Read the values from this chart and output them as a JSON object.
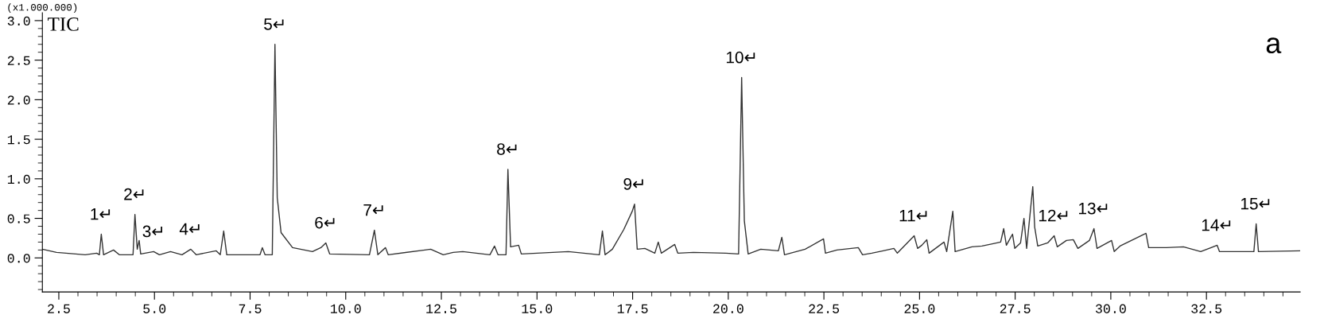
{
  "chart_data": {
    "type": "line",
    "ylabel": "(x1.000.000)",
    "x": [
      2.07,
      2.44,
      3.19,
      3.49,
      3.56,
      3.61,
      3.67,
      3.93,
      4.08,
      4.44,
      4.49,
      4.55,
      4.6,
      4.64,
      4.98,
      5.13,
      5.42,
      5.72,
      5.95,
      6.09,
      6.61,
      6.72,
      6.81,
      6.89,
      7.76,
      7.82,
      7.89,
      8.08,
      8.15,
      8.21,
      8.31,
      8.61,
      9.13,
      9.35,
      9.48,
      9.58,
      10.62,
      10.75,
      10.84,
      11.04,
      11.11,
      12.07,
      12.22,
      12.55,
      12.81,
      13.06,
      13.77,
      13.89,
      13.98,
      14.19,
      14.24,
      14.31,
      14.52,
      14.59,
      15.82,
      16.63,
      16.71,
      16.78,
      16.97,
      17.27,
      17.49,
      17.55,
      17.62,
      17.82,
      18.08,
      18.17,
      18.25,
      18.6,
      18.68,
      19.09,
      19.94,
      20.27,
      20.35,
      20.42,
      20.52,
      20.85,
      21.31,
      21.4,
      21.47,
      22.01,
      22.49,
      22.54,
      22.84,
      23.4,
      23.51,
      23.75,
      24.05,
      24.33,
      24.42,
      24.86,
      24.95,
      25.06,
      25.19,
      25.25,
      25.64,
      25.71,
      25.87,
      25.93,
      26.37,
      26.63,
      26.93,
      27.12,
      27.2,
      27.27,
      27.43,
      27.49,
      27.64,
      27.73,
      27.8,
      27.96,
      28.01,
      28.09,
      28.35,
      28.52,
      28.6,
      28.84,
      29.02,
      29.14,
      29.44,
      29.56,
      29.64,
      30.02,
      30.09,
      30.24,
      30.92,
      30.99,
      31.45,
      31.9,
      32.35,
      32.78,
      32.84,
      33.74,
      33.8,
      33.86,
      34.95
    ],
    "series": [
      {
        "color": "#333333",
        "values": [
          0.11,
          0.07,
          0.04,
          0.06,
          0.04,
          0.3,
          0.04,
          0.1,
          0.04,
          0.04,
          0.55,
          0.11,
          0.22,
          0.05,
          0.08,
          0.04,
          0.08,
          0.04,
          0.11,
          0.04,
          0.09,
          0.04,
          0.34,
          0.04,
          0.04,
          0.13,
          0.04,
          0.04,
          2.7,
          0.76,
          0.32,
          0.13,
          0.08,
          0.13,
          0.19,
          0.05,
          0.04,
          0.35,
          0.04,
          0.13,
          0.04,
          0.1,
          0.11,
          0.04,
          0.07,
          0.08,
          0.04,
          0.15,
          0.04,
          0.04,
          1.12,
          0.14,
          0.16,
          0.05,
          0.08,
          0.04,
          0.34,
          0.04,
          0.11,
          0.36,
          0.59,
          0.68,
          0.11,
          0.12,
          0.06,
          0.2,
          0.06,
          0.17,
          0.06,
          0.07,
          0.06,
          0.05,
          2.28,
          0.47,
          0.05,
          0.11,
          0.09,
          0.26,
          0.04,
          0.11,
          0.24,
          0.06,
          0.1,
          0.13,
          0.04,
          0.06,
          0.09,
          0.12,
          0.06,
          0.28,
          0.12,
          0.16,
          0.23,
          0.06,
          0.2,
          0.08,
          0.59,
          0.08,
          0.14,
          0.15,
          0.18,
          0.2,
          0.37,
          0.16,
          0.3,
          0.12,
          0.19,
          0.5,
          0.12,
          0.9,
          0.39,
          0.15,
          0.19,
          0.28,
          0.14,
          0.22,
          0.23,
          0.12,
          0.22,
          0.37,
          0.12,
          0.22,
          0.08,
          0.15,
          0.31,
          0.13,
          0.13,
          0.14,
          0.08,
          0.16,
          0.08,
          0.08,
          0.43,
          0.08,
          0.09
        ]
      }
    ],
    "xlim": [
      2.07,
      34.95
    ],
    "ylim": [
      -0.43,
      3.1
    ],
    "xticks": [
      {
        "value": 2.5,
        "label": "2.5"
      },
      {
        "value": 3.0,
        "label": null
      },
      {
        "value": 3.5,
        "label": null
      },
      {
        "value": 4.0,
        "label": null
      },
      {
        "value": 4.5,
        "label": null
      },
      {
        "value": 5.0,
        "label": "5.0"
      },
      {
        "value": 5.5,
        "label": null
      },
      {
        "value": 6.0,
        "label": null
      },
      {
        "value": 6.5,
        "label": null
      },
      {
        "value": 7.0,
        "label": null
      },
      {
        "value": 7.5,
        "label": "7.5"
      },
      {
        "value": 8.0,
        "label": null
      },
      {
        "value": 8.5,
        "label": null
      },
      {
        "value": 9.0,
        "label": null
      },
      {
        "value": 9.5,
        "label": null
      },
      {
        "value": 10.0,
        "label": "10.0"
      },
      {
        "value": 10.5,
        "label": null
      },
      {
        "value": 11.0,
        "label": null
      },
      {
        "value": 11.5,
        "label": null
      },
      {
        "value": 12.0,
        "label": null
      },
      {
        "value": 12.5,
        "label": "12.5"
      },
      {
        "value": 13.0,
        "label": null
      },
      {
        "value": 13.5,
        "label": null
      },
      {
        "value": 14.0,
        "label": null
      },
      {
        "value": 14.5,
        "label": null
      },
      {
        "value": 15.0,
        "label": "15.0"
      },
      {
        "value": 15.5,
        "label": null
      },
      {
        "value": 16.0,
        "label": null
      },
      {
        "value": 16.5,
        "label": null
      },
      {
        "value": 17.0,
        "label": null
      },
      {
        "value": 17.5,
        "label": "17.5"
      },
      {
        "value": 18.0,
        "label": null
      },
      {
        "value": 18.5,
        "label": null
      },
      {
        "value": 19.0,
        "label": null
      },
      {
        "value": 19.5,
        "label": null
      },
      {
        "value": 20.0,
        "label": "20.0"
      },
      {
        "value": 20.5,
        "label": null
      },
      {
        "value": 21.0,
        "label": null
      },
      {
        "value": 21.5,
        "label": null
      },
      {
        "value": 22.0,
        "label": null
      },
      {
        "value": 22.5,
        "label": "22.5"
      },
      {
        "value": 23.0,
        "label": null
      },
      {
        "value": 23.5,
        "label": null
      },
      {
        "value": 24.0,
        "label": null
      },
      {
        "value": 24.5,
        "label": null
      },
      {
        "value": 25.0,
        "label": "25.0"
      },
      {
        "value": 25.5,
        "label": null
      },
      {
        "value": 26.0,
        "label": null
      },
      {
        "value": 26.5,
        "label": null
      },
      {
        "value": 27.0,
        "label": null
      },
      {
        "value": 27.5,
        "label": "27.5"
      },
      {
        "value": 28.0,
        "label": null
      },
      {
        "value": 28.5,
        "label": null
      },
      {
        "value": 29.0,
        "label": null
      },
      {
        "value": 29.5,
        "label": null
      },
      {
        "value": 30.0,
        "label": "30.0"
      },
      {
        "value": 30.5,
        "label": null
      },
      {
        "value": 31.0,
        "label": null
      },
      {
        "value": 31.5,
        "label": null
      },
      {
        "value": 32.0,
        "label": null
      },
      {
        "value": 32.5,
        "label": "32.5"
      },
      {
        "value": 33.0,
        "label": null
      },
      {
        "value": 33.5,
        "label": null
      },
      {
        "value": 34.0,
        "label": null
      },
      {
        "value": 34.5,
        "label": null
      }
    ],
    "yticks": [
      {
        "value": -0.4,
        "label": null
      },
      {
        "value": -0.3,
        "label": null
      },
      {
        "value": -0.2,
        "label": null
      },
      {
        "value": -0.1,
        "label": null
      },
      {
        "value": 0.0,
        "label": "0.0"
      },
      {
        "value": 0.1,
        "label": null
      },
      {
        "value": 0.2,
        "label": null
      },
      {
        "value": 0.3,
        "label": null
      },
      {
        "value": 0.4,
        "label": null
      },
      {
        "value": 0.5,
        "label": "0.5"
      },
      {
        "value": 0.6,
        "label": null
      },
      {
        "value": 0.7,
        "label": null
      },
      {
        "value": 0.8,
        "label": null
      },
      {
        "value": 0.9,
        "label": null
      },
      {
        "value": 1.0,
        "label": "1.0"
      },
      {
        "value": 1.1,
        "label": null
      },
      {
        "value": 1.2,
        "label": null
      },
      {
        "value": 1.3,
        "label": null
      },
      {
        "value": 1.4,
        "label": null
      },
      {
        "value": 1.5,
        "label": "1.5"
      },
      {
        "value": 1.6,
        "label": null
      },
      {
        "value": 1.7,
        "label": null
      },
      {
        "value": 1.8,
        "label": null
      },
      {
        "value": 1.9,
        "label": null
      },
      {
        "value": 2.0,
        "label": "2.0"
      },
      {
        "value": 2.1,
        "label": null
      },
      {
        "value": 2.2,
        "label": null
      },
      {
        "value": 2.3,
        "label": null
      },
      {
        "value": 2.4,
        "label": null
      },
      {
        "value": 2.5,
        "label": "2.5"
      },
      {
        "value": 2.6,
        "label": null
      },
      {
        "value": 2.7,
        "label": null
      },
      {
        "value": 2.8,
        "label": null
      },
      {
        "value": 2.9,
        "label": null
      },
      {
        "value": 3.0,
        "label": "3.0"
      }
    ],
    "annotations": [
      "TIC",
      "a",
      {
        "text": "1↵",
        "x": 3.61,
        "y": 0.3
      },
      {
        "text": "2↵",
        "x": 4.49,
        "y": 0.55
      },
      {
        "text": "3↵",
        "x": 4.98,
        "y": 0.08
      },
      {
        "text": "4↵",
        "x": 5.95,
        "y": 0.11
      },
      {
        "text": "5↵",
        "x": 8.15,
        "y": 2.7
      },
      {
        "text": "6↵",
        "x": 9.48,
        "y": 0.19
      },
      {
        "text": "7↵",
        "x": 10.75,
        "y": 0.35
      },
      {
        "text": "8↵",
        "x": 14.24,
        "y": 1.12
      },
      {
        "text": "9↵",
        "x": 17.55,
        "y": 0.68
      },
      {
        "text": "10↵",
        "x": 20.35,
        "y": 2.28
      },
      {
        "text": "11↵",
        "x": 24.86,
        "y": 0.28
      },
      {
        "text": "12↵",
        "x": 28.52,
        "y": 0.28
      },
      {
        "text": "13↵",
        "x": 29.56,
        "y": 0.37
      },
      {
        "text": "14↵",
        "x": 32.78,
        "y": 0.16
      },
      {
        "text": "15↵",
        "x": 33.8,
        "y": 0.43
      }
    ],
    "grid": false,
    "legend": false
  }
}
